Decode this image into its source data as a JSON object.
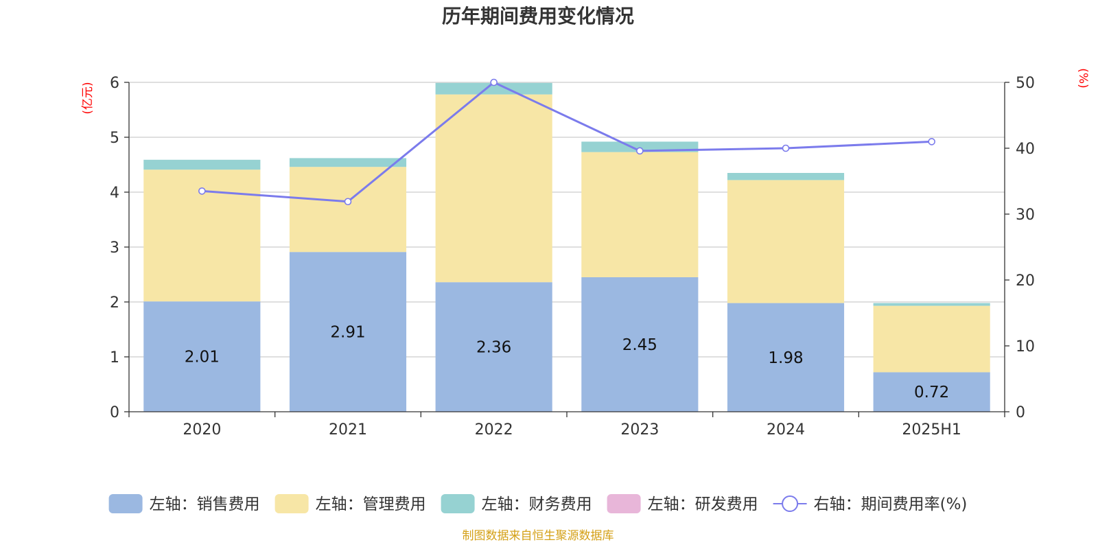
{
  "chart_data": {
    "type": "bar",
    "title": "历年期间费用变化情况",
    "categories": [
      "2020",
      "2021",
      "2022",
      "2023",
      "2024",
      "2025H1"
    ],
    "y_left": {
      "unit": "(亿元)",
      "ylim": [
        0,
        6
      ],
      "ticks": [
        "0",
        "1",
        "2",
        "3",
        "4",
        "5",
        "6"
      ]
    },
    "y_right": {
      "unit": "(%)",
      "ylim": [
        0,
        50
      ],
      "ticks": [
        "0",
        "10",
        "20",
        "30",
        "40",
        "50"
      ]
    },
    "series": [
      {
        "name": "左轴：销售费用",
        "axis": "left",
        "kind": "bar",
        "color": "#9bb8e1",
        "values": [
          2.01,
          2.91,
          2.36,
          2.45,
          1.98,
          0.72
        ],
        "labels": [
          "2.01",
          "2.91",
          "2.36",
          "2.45",
          "1.98",
          "0.72"
        ]
      },
      {
        "name": "左轴：管理费用",
        "axis": "left",
        "kind": "bar",
        "color": "#f7e6a6",
        "values": [
          2.4,
          1.55,
          3.42,
          2.28,
          2.24,
          1.21
        ]
      },
      {
        "name": "左轴：财务费用",
        "axis": "left",
        "kind": "bar",
        "color": "#96d2d2",
        "values": [
          0.18,
          0.16,
          0.21,
          0.19,
          0.13,
          0.05
        ]
      },
      {
        "name": "左轴：研发费用",
        "axis": "left",
        "kind": "bar",
        "color": "#e8b6d9",
        "values": [
          0,
          0,
          0,
          0,
          0,
          0
        ]
      },
      {
        "name": "右轴：期间费用率(%)",
        "axis": "right",
        "kind": "line",
        "color": "#7b7bec",
        "values": [
          33.5,
          31.9,
          50.0,
          39.6,
          40.0,
          41.0
        ]
      }
    ],
    "grid": true,
    "legend_position": "bottom"
  },
  "source_note": "制图数据来自恒生聚源数据库"
}
